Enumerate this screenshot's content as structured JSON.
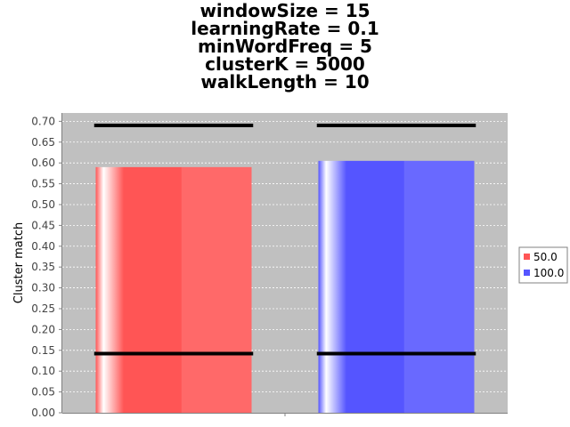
{
  "chart_data": {
    "type": "bar",
    "title_lines": [
      "windowSize = 15",
      "learningRate = 0.1",
      "minWordFreq = 5",
      "clusterK = 5000",
      "walkLength = 10"
    ],
    "xlabel": "",
    "ylabel": "Cluster match",
    "ylim": [
      0,
      0.72
    ],
    "yticks": [
      "0.00",
      "0.05",
      "0.10",
      "0.15",
      "0.20",
      "0.25",
      "0.30",
      "0.35",
      "0.40",
      "0.45",
      "0.50",
      "0.55",
      "0.60",
      "0.65",
      "0.70"
    ],
    "grid": true,
    "legend_position": "right",
    "series": [
      {
        "name": "50.0",
        "value": 0.59,
        "error_low": 0.142,
        "error_high": 0.69,
        "color": "#ff5555"
      },
      {
        "name": "100.0",
        "value": 0.605,
        "error_low": 0.142,
        "error_high": 0.69,
        "color": "#5555ff"
      }
    ],
    "plot_background": "#c0c0c0"
  }
}
